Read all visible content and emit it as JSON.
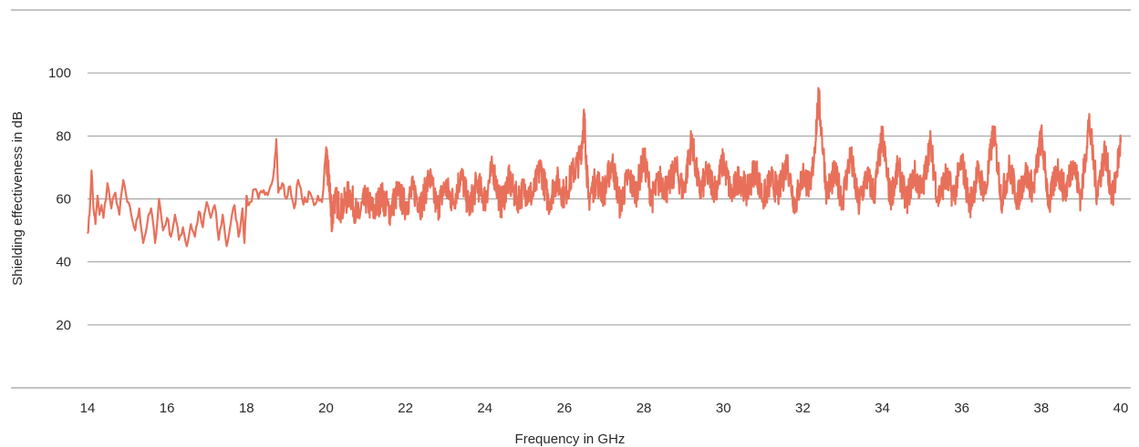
{
  "chart_data": {
    "type": "line",
    "title": "",
    "xlabel": "Frequency in GHz",
    "ylabel": "Shielding effectiveness in dB",
    "xlim": [
      14,
      40
    ],
    "ylim": [
      0,
      120
    ],
    "x_ticks": [
      14,
      16,
      18,
      20,
      22,
      24,
      26,
      28,
      30,
      32,
      34,
      36,
      38,
      40
    ],
    "y_ticks": [
      20,
      40,
      60,
      80,
      100
    ],
    "grid": "horizontal",
    "legend": "none",
    "series": [
      {
        "color": "#e8705a",
        "x": [
          14.0,
          14.05,
          14.1,
          14.15,
          14.2,
          14.25,
          14.3,
          14.35,
          14.4,
          14.5,
          14.6,
          14.7,
          14.8,
          14.9,
          15.0,
          15.1,
          15.2,
          15.3,
          15.4,
          15.5,
          15.6,
          15.7,
          15.8,
          15.9,
          16.0,
          16.1,
          16.2,
          16.3,
          16.4,
          16.5,
          16.6,
          16.7,
          16.8,
          16.9,
          17.0,
          17.1,
          17.2,
          17.3,
          17.4,
          17.5,
          17.6,
          17.7,
          17.8,
          17.9,
          17.95,
          18.0,
          18.05,
          18.1,
          18.2,
          18.3,
          18.4,
          18.5,
          18.6,
          18.7,
          18.75,
          18.8,
          18.9,
          19.0,
          19.1,
          19.2,
          19.3,
          19.4,
          19.5,
          19.6,
          19.7,
          19.8,
          19.9,
          20.0,
          20.1,
          20.15,
          20.2,
          20.4,
          20.6,
          20.8,
          21.0,
          21.2,
          21.4,
          21.6,
          21.8,
          22.0,
          22.2,
          22.4,
          22.6,
          22.8,
          23.0,
          23.2,
          23.4,
          23.6,
          23.8,
          24.0,
          24.2,
          24.4,
          24.6,
          24.8,
          25.0,
          25.2,
          25.4,
          25.6,
          25.8,
          26.0,
          26.2,
          26.4,
          26.5,
          26.6,
          26.8,
          27.0,
          27.2,
          27.4,
          27.6,
          27.8,
          28.0,
          28.2,
          28.4,
          28.6,
          28.8,
          29.0,
          29.2,
          29.4,
          29.6,
          29.8,
          30.0,
          30.2,
          30.4,
          30.6,
          30.8,
          31.0,
          31.2,
          31.4,
          31.6,
          31.8,
          32.0,
          32.2,
          32.4,
          32.6,
          32.8,
          33.0,
          33.2,
          33.4,
          33.6,
          33.8,
          34.0,
          34.2,
          34.4,
          34.6,
          34.8,
          35.0,
          35.2,
          35.4,
          35.6,
          35.8,
          36.0,
          36.2,
          36.4,
          36.6,
          36.8,
          37.0,
          37.2,
          37.4,
          37.6,
          37.8,
          38.0,
          38.2,
          38.4,
          38.6,
          38.8,
          39.0,
          39.2,
          39.4,
          39.6,
          39.8,
          40.0
        ],
        "y": [
          49,
          55,
          69,
          57,
          52,
          61,
          55,
          58,
          54,
          65,
          57,
          62,
          55,
          66,
          59,
          55,
          50,
          57,
          46,
          52,
          57,
          46,
          60,
          50,
          54,
          48,
          55,
          47,
          51,
          45,
          52,
          48,
          56,
          51,
          59,
          54,
          58,
          47,
          55,
          45,
          52,
          58,
          48,
          57,
          46,
          61,
          58,
          59,
          63,
          60,
          62,
          62,
          64,
          70,
          79,
          62,
          65,
          60,
          64,
          57,
          66,
          60,
          59,
          62,
          58,
          61,
          59,
          75,
          62,
          52,
          60,
          57,
          62,
          54,
          60,
          56,
          61,
          56,
          62,
          58,
          63,
          58,
          67,
          57,
          64,
          59,
          68,
          57,
          65,
          60,
          70,
          58,
          66,
          60,
          63,
          61,
          70,
          59,
          66,
          61,
          68,
          73,
          86,
          60,
          66,
          62,
          72,
          58,
          67,
          62,
          73,
          60,
          66,
          63,
          70,
          62,
          79,
          62,
          68,
          63,
          72,
          61,
          67,
          62,
          70,
          60,
          66,
          62,
          72,
          58,
          68,
          63,
          92,
          62,
          68,
          60,
          74,
          58,
          67,
          62,
          80,
          60,
          70,
          59,
          68,
          62,
          78,
          60,
          67,
          61,
          72,
          58,
          68,
          62,
          82,
          60,
          70,
          60,
          68,
          63,
          80,
          58,
          70,
          62,
          72,
          60,
          85,
          62,
          75,
          60,
          78
        ]
      }
    ]
  }
}
